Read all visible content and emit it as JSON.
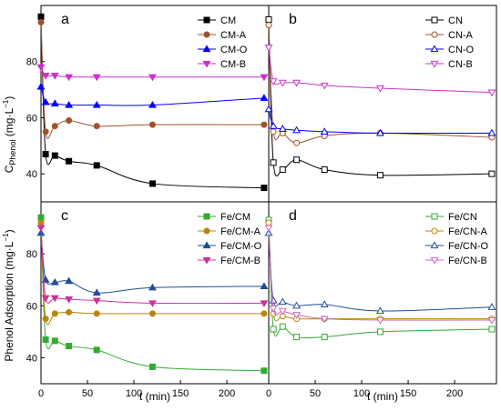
{
  "chart_data": [
    {
      "panel": "a",
      "type": "line",
      "xlim": [
        0,
        245
      ],
      "ylim": [
        30,
        100
      ],
      "x_ticks": [],
      "y_ticks": [
        40,
        60,
        80
      ],
      "legend_position": "top-right",
      "series": [
        {
          "name": "CM",
          "color": "#000000",
          "marker": "square-filled",
          "x": [
            0,
            5,
            15,
            30,
            60,
            120,
            240
          ],
          "y": [
            96,
            47,
            46.5,
            44.5,
            43,
            36.5,
            35
          ]
        },
        {
          "name": "CM-A",
          "color": "#a0522d",
          "marker": "circle-filled",
          "x": [
            0,
            5,
            15,
            30,
            60,
            120,
            240
          ],
          "y": [
            94,
            55,
            57,
            59,
            57,
            57.5,
            57.5
          ]
        },
        {
          "name": "CM-O",
          "color": "#0000ff",
          "marker": "triangle-up-filled",
          "x": [
            0,
            5,
            15,
            30,
            60,
            120,
            240
          ],
          "y": [
            71,
            65.5,
            65,
            64.5,
            64.5,
            64.5,
            67
          ]
        },
        {
          "name": "CM-B",
          "color": "#cc33cc",
          "marker": "triangle-down-filled",
          "x": [
            0,
            5,
            15,
            30,
            60,
            120,
            240
          ],
          "y": [
            78,
            75,
            75,
            74.5,
            74.5,
            74.5,
            74.5
          ]
        }
      ]
    },
    {
      "panel": "b",
      "type": "line",
      "xlim": [
        0,
        245
      ],
      "ylim": [
        30,
        100
      ],
      "x_ticks": [],
      "y_ticks": [],
      "legend_position": "top-right",
      "series": [
        {
          "name": "CN",
          "color": "#000000",
          "marker": "square-open",
          "x": [
            0,
            5,
            15,
            30,
            60,
            120,
            240
          ],
          "y": [
            95,
            44,
            41.5,
            45,
            41.5,
            39.5,
            40
          ]
        },
        {
          "name": "CN-A",
          "color": "#a0522d",
          "marker": "circle-open",
          "x": [
            0,
            5,
            15,
            30,
            60,
            120,
            240
          ],
          "y": [
            93,
            55,
            54.5,
            51,
            53.5,
            54.5,
            53
          ]
        },
        {
          "name": "CN-O",
          "color": "#0000ff",
          "marker": "triangle-up-open",
          "x": [
            0,
            5,
            15,
            30,
            60,
            120,
            240
          ],
          "y": [
            63,
            57,
            56,
            55.5,
            55,
            54.5,
            54.5
          ]
        },
        {
          "name": "CN-B",
          "color": "#cc33cc",
          "marker": "triangle-down-open",
          "x": [
            0,
            5,
            15,
            30,
            60,
            120,
            240
          ],
          "y": [
            85,
            73,
            72.5,
            72.5,
            71.5,
            70.5,
            69
          ]
        }
      ]
    },
    {
      "panel": "c",
      "type": "line",
      "xlim": [
        0,
        245
      ],
      "ylim": [
        30,
        100
      ],
      "x_ticks": [
        0,
        50,
        100,
        150,
        200
      ],
      "y_ticks": [
        40,
        60,
        80
      ],
      "legend_position": "top-right",
      "series": [
        {
          "name": "Fe/CM",
          "color": "#33aa33",
          "marker": "square-filled",
          "x": [
            0,
            5,
            15,
            30,
            60,
            120,
            240
          ],
          "y": [
            94,
            47,
            46.5,
            44.5,
            43,
            36.5,
            35
          ]
        },
        {
          "name": "Fe/CM-A",
          "color": "#b8860b",
          "marker": "circle-filled",
          "x": [
            0,
            5,
            15,
            30,
            60,
            120,
            240
          ],
          "y": [
            92,
            55,
            57,
            57.5,
            57,
            57,
            57
          ]
        },
        {
          "name": "Fe/CM-O",
          "color": "#1f4e99",
          "marker": "triangle-up-filled",
          "x": [
            0,
            5,
            15,
            30,
            60,
            120,
            240
          ],
          "y": [
            88,
            70,
            69,
            69.5,
            65,
            67,
            67.5
          ]
        },
        {
          "name": "Fe/CM-B",
          "color": "#cc3399",
          "marker": "triangle-down-filled",
          "x": [
            0,
            5,
            15,
            30,
            60,
            120,
            240
          ],
          "y": [
            90,
            63,
            63,
            62.5,
            62,
            61,
            61
          ]
        }
      ]
    },
    {
      "panel": "d",
      "type": "line",
      "xlim": [
        0,
        245
      ],
      "ylim": [
        30,
        100
      ],
      "x_ticks": [
        0,
        50,
        100,
        150,
        200
      ],
      "y_ticks": [],
      "legend_position": "top-right",
      "series": [
        {
          "name": "Fe/CN",
          "color": "#33aa33",
          "marker": "square-open",
          "x": [
            0,
            5,
            15,
            30,
            60,
            120,
            240
          ],
          "y": [
            93,
            51,
            52,
            48,
            48,
            50,
            51
          ]
        },
        {
          "name": "Fe/CN-A",
          "color": "#b8860b",
          "marker": "circle-open",
          "x": [
            0,
            5,
            15,
            30,
            60,
            120,
            240
          ],
          "y": [
            92,
            57,
            56,
            55,
            55,
            55,
            55
          ]
        },
        {
          "name": "Fe/CN-O",
          "color": "#1f4e99",
          "marker": "triangle-up-open",
          "x": [
            0,
            5,
            15,
            30,
            60,
            120,
            240
          ],
          "y": [
            88,
            62,
            61.5,
            60,
            60.5,
            58,
            59.5
          ]
        },
        {
          "name": "Fe/CN-B",
          "color": "#cc66cc",
          "marker": "triangle-down-open",
          "x": [
            0,
            5,
            15,
            30,
            60,
            120,
            240
          ],
          "y": [
            90,
            59,
            58,
            56.5,
            55,
            54.5,
            54.5
          ]
        }
      ]
    }
  ],
  "axis_titles": {
    "y_top_base": "C",
    "y_top_sub": "Phenol",
    "y_top_unit": " (mg·L",
    "y_top_exp": "−1",
    "y_top_close": ")",
    "y_bottom_text": "Phenol Adsorption (mg·L",
    "y_bottom_exp": "−1",
    "y_bottom_close": ")",
    "x_title_left": "t (min)",
    "x_title_right": "t (min)"
  }
}
